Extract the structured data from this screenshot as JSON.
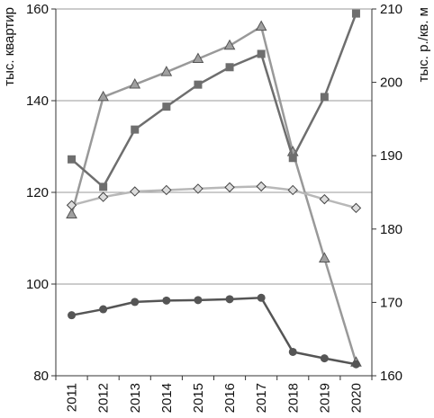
{
  "chart_data": {
    "type": "line",
    "x": [
      "2011",
      "2012",
      "2013",
      "2014",
      "2015",
      "2016",
      "2017",
      "2018",
      "2019",
      "2020"
    ],
    "left_axis": {
      "label": "тыс. квартир",
      "range": [
        80,
        160
      ],
      "ticks": [
        80,
        100,
        120,
        140,
        160
      ]
    },
    "right_axis": {
      "label": "тыс. р./кв. м",
      "range": [
        160,
        210
      ],
      "ticks": [
        160,
        170,
        180,
        190,
        200,
        210
      ]
    },
    "grid": true,
    "legend": "none",
    "series": [
      {
        "axis": "right",
        "marker": "triangle",
        "color": "#999999",
        "values": [
          182,
          198,
          199.7,
          201.4,
          203.2,
          205,
          207.6,
          190.5,
          176,
          161.8
        ]
      },
      {
        "axis": "left",
        "marker": "square",
        "color": "#6e6e6e",
        "values": [
          127.2,
          121.2,
          133.7,
          138.7,
          143.5,
          147.3,
          150.2,
          127.5,
          140.8,
          159
        ]
      },
      {
        "axis": "left",
        "marker": "diamond",
        "color": "#b8b8b8",
        "values": [
          117.2,
          119,
          120.2,
          120.5,
          120.8,
          121.1,
          121.3,
          120.5,
          118.5,
          116.6
        ]
      },
      {
        "axis": "left",
        "marker": "circle",
        "color": "#555555",
        "values": [
          93.2,
          94.5,
          96.1,
          96.4,
          96.5,
          96.7,
          97,
          85.2,
          83.8,
          82.5
        ]
      }
    ]
  }
}
